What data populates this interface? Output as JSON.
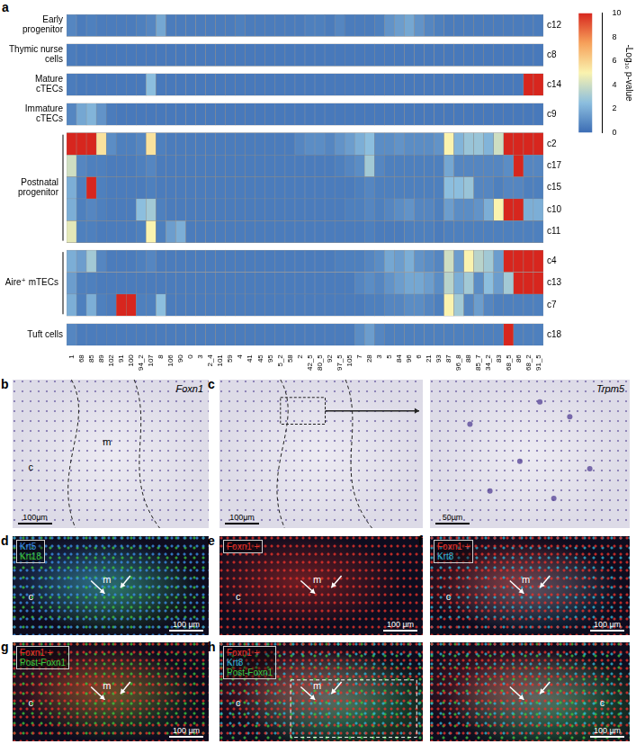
{
  "chart_data": {
    "type": "heatmap",
    "panel": "a",
    "categories": [
      "1",
      "68",
      "85",
      "89",
      "102",
      "91",
      "100",
      "94_2",
      "107",
      "8",
      "106",
      "90",
      "0",
      "3",
      "2_4",
      "101",
      "59",
      "4",
      "41",
      "45",
      "95",
      "5_2",
      "58",
      "2",
      "42_5",
      "80_5",
      "92",
      "97_5",
      "105",
      "7",
      "28",
      "3",
      "5",
      "84",
      "96",
      "6",
      "21",
      "93",
      "87",
      "96_8",
      "88",
      "85_7",
      "34_2",
      "83",
      "68_5",
      "86",
      "68_2",
      "91_5"
    ],
    "rows": [
      "c12",
      "c8",
      "c14",
      "c9",
      "c2",
      "c17",
      "c15",
      "c10",
      "c11",
      "c4",
      "c13",
      "c7",
      "c18"
    ],
    "groups": [
      {
        "label": "Early progenitor",
        "rows": [
          "c12"
        ]
      },
      {
        "label": "Thymic nurse cells",
        "rows": [
          "c8"
        ]
      },
      {
        "label": "Mature cTECs",
        "rows": [
          "c14"
        ]
      },
      {
        "label": "Immature cTECs",
        "rows": [
          "c9"
        ]
      },
      {
        "label": "Postnatal progenitor",
        "rows": [
          "c2",
          "c17",
          "c15",
          "c10",
          "c11"
        ]
      },
      {
        "label": "Aire⁺ mTECs",
        "rows": [
          "c4",
          "c13",
          "c7"
        ]
      },
      {
        "label": "Tuft cells",
        "rows": [
          "c18"
        ]
      }
    ],
    "cells": [
      [
        0.8,
        0.5,
        0.6,
        0.5,
        0.5,
        0.5,
        0.5,
        0.6,
        0.8,
        1.8,
        0.5,
        0.5,
        0.5,
        0.5,
        0.5,
        0.5,
        0.5,
        0.6,
        0.5,
        0.5,
        0.5,
        0.5,
        0.5,
        0.5,
        0.6,
        0.6,
        0.5,
        0.8,
        0.5,
        0.5,
        0.5,
        0.6,
        1.2,
        1.5,
        1.8,
        1.2,
        0.8,
        0.6,
        0.5,
        0.5,
        0.5,
        0.5,
        0.5,
        0.5,
        0.5,
        0.5,
        0.5,
        0.5
      ],
      [
        0.5,
        0.4,
        0.4,
        0.4,
        0.4,
        0.4,
        0.4,
        0.4,
        0.4,
        0.4,
        0.4,
        0.4,
        0.4,
        0.4,
        0.4,
        0.4,
        0.4,
        0.4,
        0.4,
        0.4,
        0.4,
        0.4,
        0.4,
        0.4,
        0.4,
        0.4,
        0.4,
        0.4,
        0.4,
        0.4,
        0.4,
        0.4,
        0.4,
        0.4,
        0.4,
        0.4,
        0.4,
        0.4,
        0.4,
        0.4,
        0.4,
        0.4,
        0.4,
        0.4,
        0.4,
        0.4,
        0.4,
        0.4
      ],
      [
        0.5,
        0.4,
        0.4,
        0.4,
        0.4,
        0.4,
        0.4,
        0.4,
        2.5,
        0.4,
        0.4,
        0.4,
        0.4,
        0.4,
        0.4,
        0.4,
        0.4,
        0.4,
        0.4,
        0.4,
        0.4,
        0.4,
        0.4,
        0.4,
        0.4,
        0.4,
        0.4,
        0.4,
        0.4,
        0.4,
        0.4,
        0.4,
        0.4,
        0.4,
        0.4,
        0.4,
        0.4,
        0.4,
        0.4,
        0.4,
        0.4,
        0.4,
        0.4,
        0.4,
        0.4,
        0.4,
        10,
        10
      ],
      [
        0.8,
        1.8,
        2.2,
        1.2,
        0.5,
        0.4,
        0.4,
        0.4,
        0.4,
        0.4,
        0.4,
        0.4,
        0.4,
        0.4,
        0.4,
        0.4,
        0.4,
        0.4,
        0.4,
        0.4,
        0.4,
        0.4,
        0.4,
        0.4,
        0.4,
        0.4,
        0.4,
        0.4,
        0.4,
        0.4,
        0.4,
        0.4,
        0.4,
        0.4,
        0.4,
        0.4,
        0.4,
        0.4,
        0.4,
        0.4,
        0.4,
        0.4,
        0.4,
        0.4,
        0.4,
        0.4,
        0.4,
        0.4
      ],
      [
        10,
        10,
        10,
        5.5,
        1,
        0.6,
        0.6,
        0.8,
        5.5,
        0.6,
        0.5,
        0.5,
        0.5,
        0.5,
        0.5,
        0.5,
        0.5,
        0.5,
        0.5,
        0.5,
        0.5,
        0.5,
        0.5,
        0.8,
        1,
        1,
        0.8,
        1.2,
        1.5,
        2,
        2.5,
        1,
        1,
        1.2,
        1,
        1,
        1,
        1.2,
        5,
        2.2,
        2.8,
        2.8,
        2.2,
        4,
        10,
        10,
        10,
        10
      ],
      [
        4,
        0.8,
        0.6,
        0.6,
        0.5,
        0.5,
        0.5,
        0.6,
        0.8,
        0.5,
        0.5,
        0.5,
        0.5,
        0.5,
        0.5,
        0.5,
        0.5,
        0.5,
        0.5,
        0.5,
        0.5,
        0.5,
        0.5,
        0.5,
        0.5,
        0.5,
        0.5,
        0.6,
        0.8,
        1,
        3,
        0.8,
        0.6,
        0.6,
        0.6,
        0.6,
        0.6,
        0.6,
        1.8,
        0.8,
        0.8,
        0.8,
        0.8,
        0.8,
        1,
        10,
        0.8,
        0.8
      ],
      [
        2,
        0.6,
        10,
        0.6,
        0.5,
        0.5,
        0.5,
        0.5,
        0.6,
        0.5,
        0.5,
        0.5,
        0.5,
        0.5,
        0.5,
        0.5,
        0.5,
        0.5,
        0.5,
        0.5,
        0.5,
        0.5,
        0.5,
        0.5,
        0.5,
        0.5,
        0.5,
        0.5,
        0.5,
        0.6,
        0.8,
        0.6,
        0.6,
        0.6,
        0.6,
        0.6,
        0.6,
        0.6,
        2.5,
        2.5,
        2.8,
        0.8,
        0.8,
        0.6,
        0.8,
        0.8,
        0.6,
        0.6
      ],
      [
        2,
        0.6,
        0.8,
        0.6,
        0.5,
        0.5,
        0.5,
        2.5,
        3,
        0.6,
        0.5,
        0.5,
        0.5,
        0.5,
        0.5,
        0.5,
        0.5,
        0.5,
        0.5,
        0.5,
        0.5,
        0.5,
        0.5,
        0.5,
        0.5,
        0.5,
        0.5,
        0.5,
        0.6,
        0.6,
        0.8,
        0.6,
        0.8,
        1,
        1.2,
        0.8,
        0.8,
        0.6,
        1.5,
        1,
        1,
        1.2,
        2,
        5,
        10,
        10,
        2,
        2
      ],
      [
        4.5,
        0.6,
        0.6,
        0.5,
        0.5,
        0.5,
        0.5,
        0.6,
        5,
        0.6,
        1.5,
        2,
        0.5,
        0.5,
        0.5,
        0.5,
        0.5,
        0.5,
        0.5,
        0.5,
        0.5,
        0.5,
        0.5,
        0.5,
        0.5,
        0.5,
        0.5,
        0.5,
        0.5,
        0.5,
        0.6,
        0.5,
        0.5,
        0.5,
        0.6,
        0.6,
        0.6,
        0.5,
        0.6,
        0.6,
        0.6,
        0.6,
        0.6,
        0.6,
        0.6,
        0.6,
        0.6,
        0.6
      ],
      [
        2,
        1.5,
        3,
        0.8,
        0.5,
        0.5,
        0.5,
        0.6,
        0.8,
        0.5,
        0.5,
        0.5,
        0.5,
        0.5,
        0.5,
        0.5,
        0.5,
        0.5,
        0.5,
        0.5,
        0.5,
        0.5,
        0.5,
        0.5,
        0.5,
        0.5,
        0.5,
        0.6,
        0.6,
        0.6,
        0.8,
        1,
        1.8,
        1.5,
        2,
        1.2,
        1,
        0.8,
        4,
        1.5,
        5,
        3.5,
        3,
        1.5,
        10,
        10,
        10,
        10
      ],
      [
        1.5,
        0.6,
        0.6,
        0.5,
        0.5,
        0.5,
        0.5,
        0.5,
        0.5,
        0.5,
        0.5,
        0.5,
        0.5,
        0.5,
        0.5,
        0.5,
        0.5,
        0.5,
        0.5,
        0.5,
        0.5,
        0.5,
        0.5,
        0.5,
        0.5,
        0.5,
        0.5,
        0.5,
        0.5,
        0.8,
        1,
        0.8,
        1.2,
        1.5,
        1.8,
        1.8,
        1.5,
        1,
        3.5,
        2,
        3,
        1,
        2.5,
        1.5,
        3,
        10,
        10,
        10
      ],
      [
        2,
        0.6,
        2,
        0.6,
        0.5,
        10,
        10,
        0.6,
        0.6,
        2.5,
        0.5,
        0.5,
        0.5,
        0.5,
        0.5,
        0.5,
        0.5,
        0.5,
        0.5,
        0.5,
        0.5,
        0.5,
        0.5,
        0.5,
        0.5,
        0.5,
        0.5,
        0.5,
        0.5,
        0.5,
        0.6,
        0.6,
        0.8,
        0.8,
        1,
        1,
        0.8,
        0.6,
        5,
        3,
        0.8,
        1.5,
        0.8,
        0.6,
        0.6,
        0.6,
        0.6,
        0.6
      ],
      [
        0.8,
        0.5,
        0.5,
        0.5,
        0.5,
        0.5,
        0.5,
        0.5,
        0.5,
        0.5,
        0.5,
        0.5,
        0.5,
        0.5,
        0.5,
        0.5,
        0.5,
        0.5,
        0.5,
        0.5,
        0.5,
        0.5,
        0.5,
        0.5,
        0.5,
        0.5,
        0.5,
        0.5,
        0.5,
        1,
        1.5,
        0.8,
        0.6,
        0.6,
        0.6,
        0.6,
        0.6,
        0.6,
        0.6,
        0.6,
        0.6,
        0.6,
        0.6,
        0.6,
        10,
        0.6,
        0.6,
        0.6
      ]
    ],
    "colorbar": {
      "title": "-Log₁₀ p-value",
      "lim": [
        0,
        10
      ],
      "ticks": [
        0,
        2,
        4,
        6,
        8,
        10
      ]
    }
  },
  "image_panels": [
    {
      "label": "b",
      "images": [
        {
          "title": "Foxn1",
          "regions": [
            "c",
            "m"
          ],
          "scale_bar": "100µm"
        }
      ]
    },
    {
      "label": "c",
      "images": [
        {
          "scale_bar": "100µm"
        },
        {
          "title": "Trpm5",
          "scale_bar": "50µm"
        }
      ]
    },
    {
      "label": "d",
      "images": [
        {
          "channels": [
            {
              "text": "Krt5",
              "color": "#3a8ee6"
            },
            {
              "text": "Krt18",
              "color": "#3cc43c"
            }
          ],
          "regions": [
            "m",
            "c"
          ],
          "scale_bar": "100 µm"
        }
      ]
    },
    {
      "label": "e",
      "images": [
        {
          "channels": [
            {
              "text": "Foxn1 +",
              "color": "#e8322a"
            }
          ],
          "regions": [
            "c",
            "m"
          ],
          "scale_bar": "100 µm"
        }
      ]
    },
    {
      "label": "f",
      "images": [
        {
          "channels": [
            {
              "text": "Foxn1 +",
              "color": "#e8322a"
            },
            {
              "text": "Krt8",
              "color": "#2fb5d6"
            }
          ],
          "regions": [
            "c",
            "m"
          ],
          "scale_bar": "100 µm"
        }
      ]
    },
    {
      "label": "g",
      "images": [
        {
          "channels": [
            {
              "text": "Foxn1 +",
              "color": "#e8322a"
            },
            {
              "text": "Post-Foxn1",
              "color": "#3cc43c"
            }
          ],
          "regions": [
            "c",
            "m"
          ],
          "scale_bar": "100 µm"
        }
      ]
    },
    {
      "label": "h",
      "images": [
        {
          "channels": [
            {
              "text": "Foxn1 +",
              "color": "#e8322a"
            },
            {
              "text": "Krt8",
              "color": "#2fb5d6"
            },
            {
              "text": "Post-Foxn1",
              "color": "#3cc43c"
            }
          ],
          "regions": [
            "c",
            "m"
          ]
        },
        {
          "regions": [
            "c"
          ],
          "scale_bar": "100 µm"
        }
      ]
    }
  ]
}
